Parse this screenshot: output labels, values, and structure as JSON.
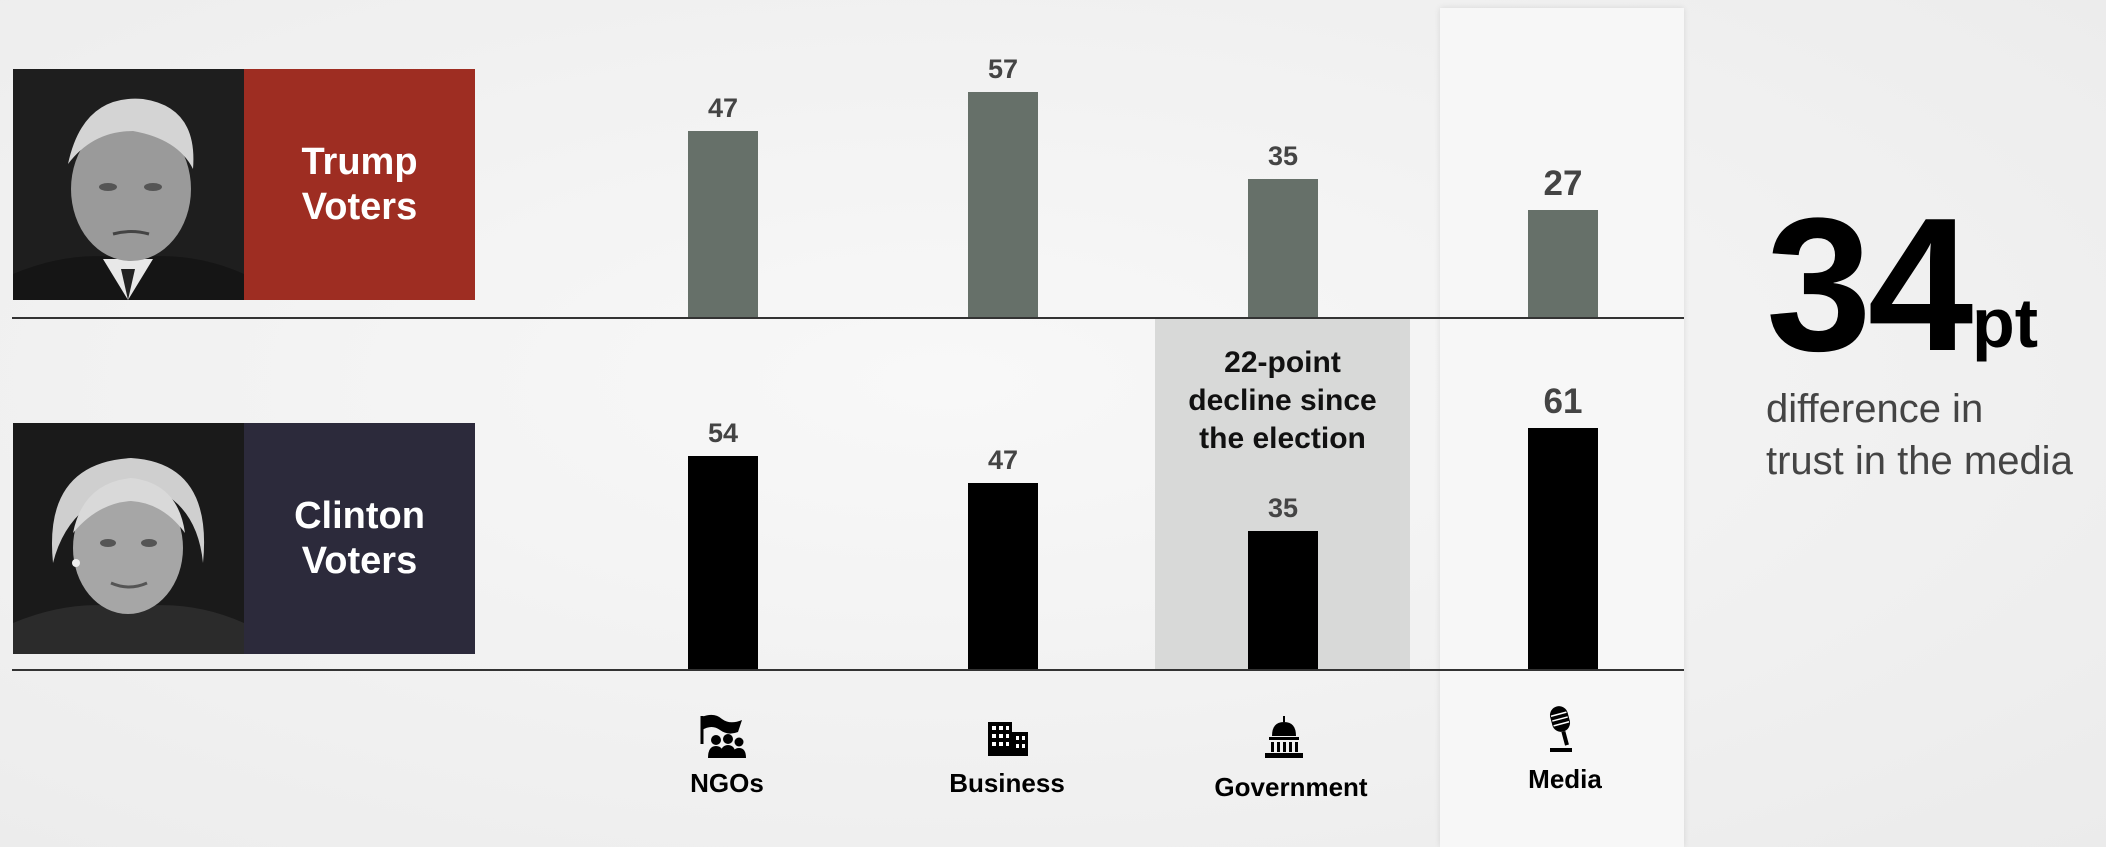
{
  "groups": [
    {
      "line1": "Trump",
      "line2": "Voters",
      "color": "#9e2d22"
    },
    {
      "line1": "Clinton",
      "line2": "Voters",
      "color": "#2c2a3b"
    }
  ],
  "colors": {
    "trump_bar": "#667069",
    "clinton_bar": "#000000",
    "highlight_panel": "#d8d9d8"
  },
  "annotation": {
    "line1": "22-point",
    "line2": "decline since",
    "line3": "the election"
  },
  "callout": {
    "number": "34",
    "unit": "pt",
    "line1": "difference in",
    "line2": "trust in the media"
  },
  "categories": [
    {
      "label": "NGOs",
      "icon": "protest-flag-icon"
    },
    {
      "label": "Business",
      "icon": "office-building-icon"
    },
    {
      "label": "Government",
      "icon": "capitol-dome-icon"
    },
    {
      "label": "Media",
      "icon": "microphone-icon"
    }
  ],
  "chart_data": {
    "type": "bar",
    "categories": [
      "NGOs",
      "Business",
      "Government",
      "Media"
    ],
    "series": [
      {
        "name": "Trump Voters",
        "values": [
          47,
          57,
          35,
          27
        ]
      },
      {
        "name": "Clinton Voters",
        "values": [
          54,
          47,
          35,
          61
        ]
      }
    ],
    "highlight": "Media"
  }
}
